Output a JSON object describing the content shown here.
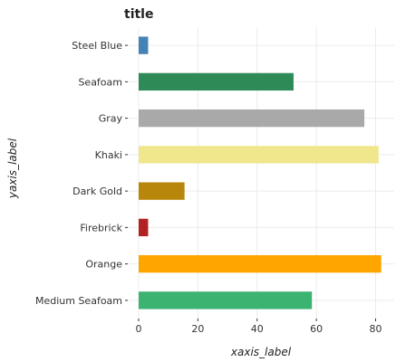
{
  "chart_data": {
    "type": "bar",
    "orientation": "horizontal",
    "title": "title",
    "xlabel": "xaxis_label",
    "ylabel": "yaxis_label",
    "categories": [
      "Medium Seafoam",
      "Orange",
      "Firebrick",
      "Dark Gold",
      "Khaki",
      "Gray",
      "Seafoam",
      "Steel Blue"
    ],
    "values": [
      58.5,
      81.9,
      3.2,
      15.5,
      81.0,
      76.2,
      52.3,
      3.2
    ],
    "colors": [
      "#3cb371",
      "#ffa500",
      "#b22222",
      "#b8860b",
      "#f0e68c",
      "#a9a9a9",
      "#2e8b57",
      "#4682b4"
    ],
    "xlim": [
      0,
      85
    ],
    "xticks": [
      0,
      20,
      40,
      60,
      80
    ],
    "grid": true
  }
}
